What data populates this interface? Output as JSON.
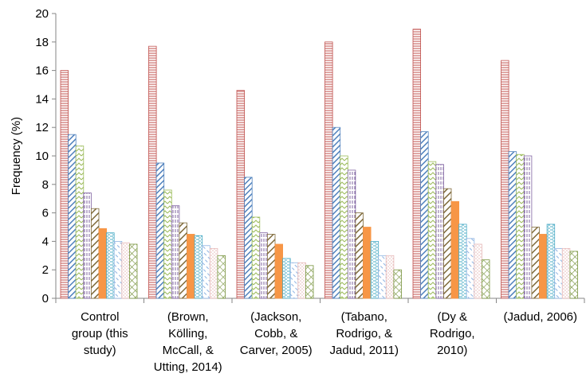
{
  "chart_data": {
    "type": "bar",
    "ylabel": "Frequency (%)",
    "ylim": [
      0,
      20
    ],
    "yticks": [
      0,
      2,
      4,
      6,
      8,
      10,
      12,
      14,
      16,
      18,
      20
    ],
    "grid": false,
    "legend": "none",
    "categories": [
      [
        "Control",
        "group (this",
        "study)"
      ],
      [
        "(Brown,",
        "Kölling,",
        "McCall, &",
        "Utting, 2014)"
      ],
      [
        "(Jackson,",
        "Cobb, &",
        "Carver, 2005)"
      ],
      [
        "(Tabano,",
        "Rodrigo, &",
        "Jadud, 2011)"
      ],
      [
        "(Dy &",
        "Rodrigo,",
        "2010)"
      ],
      [
        "(Jadud, 2006)"
      ]
    ],
    "series": [
      {
        "color": "#c0504d",
        "pattern": "horizontal",
        "values": [
          16.0,
          17.7,
          14.6,
          18.0,
          18.9,
          16.7
        ]
      },
      {
        "color": "#4f81bd",
        "pattern": "wide-diagonal",
        "values": [
          11.5,
          9.5,
          8.5,
          12.0,
          11.7,
          10.3
        ]
      },
      {
        "color": "#9bbb59",
        "pattern": "zigzag",
        "values": [
          10.7,
          7.6,
          5.7,
          10.0,
          9.6,
          10.1
        ]
      },
      {
        "color": "#8064a2",
        "pattern": "vertical-dashes",
        "values": [
          7.4,
          6.5,
          4.6,
          9.0,
          9.4,
          10.0
        ]
      },
      {
        "color": "#7f6a3a",
        "pattern": "dark-diagonal",
        "values": [
          6.3,
          5.3,
          4.5,
          6.0,
          7.7,
          5.0
        ]
      },
      {
        "color": "#f79646",
        "pattern": "solid",
        "values": [
          4.9,
          4.5,
          3.8,
          5.0,
          6.8,
          4.5
        ]
      },
      {
        "color": "#4bacc6",
        "pattern": "dashed-horizontal",
        "values": [
          4.6,
          4.4,
          2.8,
          4.0,
          5.2,
          5.2
        ]
      },
      {
        "color": "#8db3e2",
        "pattern": "dashed-diagonal",
        "values": [
          4.0,
          3.7,
          2.5,
          3.0,
          4.2,
          3.5
        ]
      },
      {
        "color": "#e6b9b8",
        "pattern": "dotted-diagonal",
        "values": [
          3.9,
          3.5,
          2.5,
          3.0,
          3.8,
          3.5
        ]
      },
      {
        "color": "#77933c",
        "pattern": "cross-hatch",
        "values": [
          3.8,
          3.0,
          2.3,
          2.0,
          2.7,
          3.3
        ]
      }
    ]
  }
}
